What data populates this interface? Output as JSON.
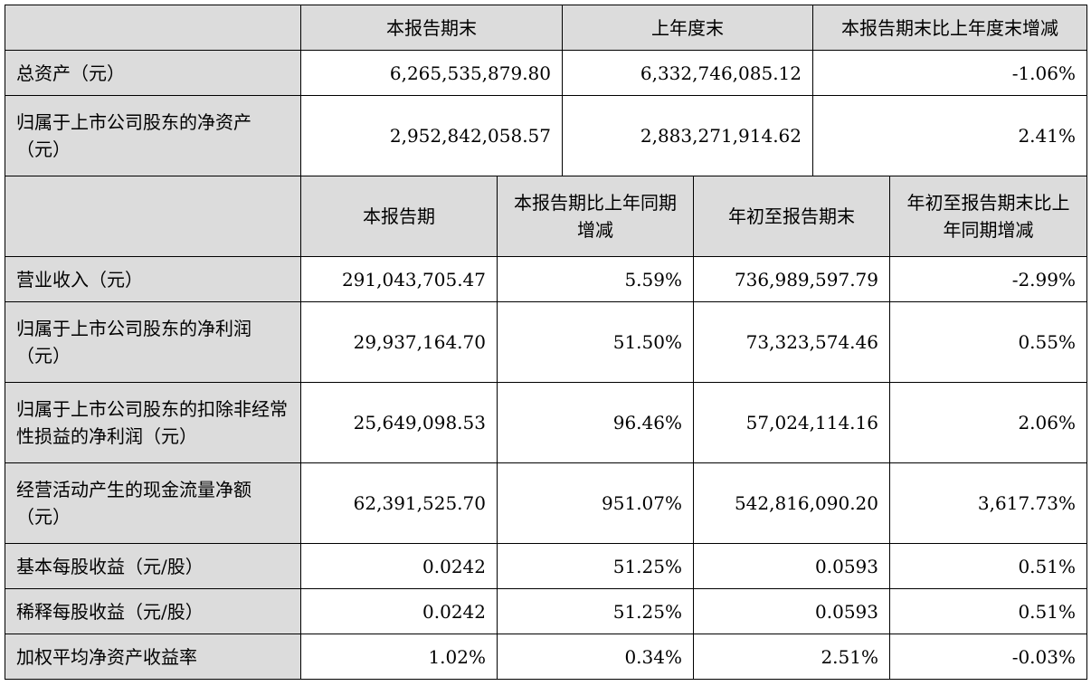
{
  "balance": {
    "headers": [
      "本报告期末",
      "上年度末",
      "本报告期末比上年度末增减"
    ],
    "rows": [
      {
        "label": "总资产（元）",
        "values": [
          "6,265,535,879.80",
          "6,332,746,085.12",
          "-1.06%"
        ]
      },
      {
        "label": "归属于上市公司股东的净资产（元）",
        "values": [
          "2,952,842,058.57",
          "2,883,271,914.62",
          "2.41%"
        ]
      }
    ]
  },
  "income": {
    "headers": [
      "本报告期",
      "本报告期比上年同期增减",
      "年初至报告期末",
      "年初至报告期末比上年同期增减"
    ],
    "rows": [
      {
        "label": "营业收入（元）",
        "values": [
          "291,043,705.47",
          "5.59%",
          "736,989,597.79",
          "-2.99%"
        ]
      },
      {
        "label": "归属于上市公司股东的净利润（元）",
        "values": [
          "29,937,164.70",
          "51.50%",
          "73,323,574.46",
          "0.55%"
        ]
      },
      {
        "label": "归属于上市公司股东的扣除非经常性损益的净利润（元）",
        "values": [
          "25,649,098.53",
          "96.46%",
          "57,024,114.16",
          "2.06%"
        ]
      },
      {
        "label": "经营活动产生的现金流量净额（元）",
        "values": [
          "62,391,525.70",
          "951.07%",
          "542,816,090.20",
          "3,617.73%"
        ]
      },
      {
        "label": "基本每股收益（元/股）",
        "values": [
          "0.0242",
          "51.25%",
          "0.0593",
          "0.51%"
        ]
      },
      {
        "label": "稀释每股收益（元/股）",
        "values": [
          "0.0242",
          "51.25%",
          "0.0593",
          "0.51%"
        ]
      },
      {
        "label": "加权平均净资产收益率",
        "values": [
          "1.02%",
          "0.34%",
          "2.51%",
          "-0.03%"
        ]
      }
    ]
  }
}
